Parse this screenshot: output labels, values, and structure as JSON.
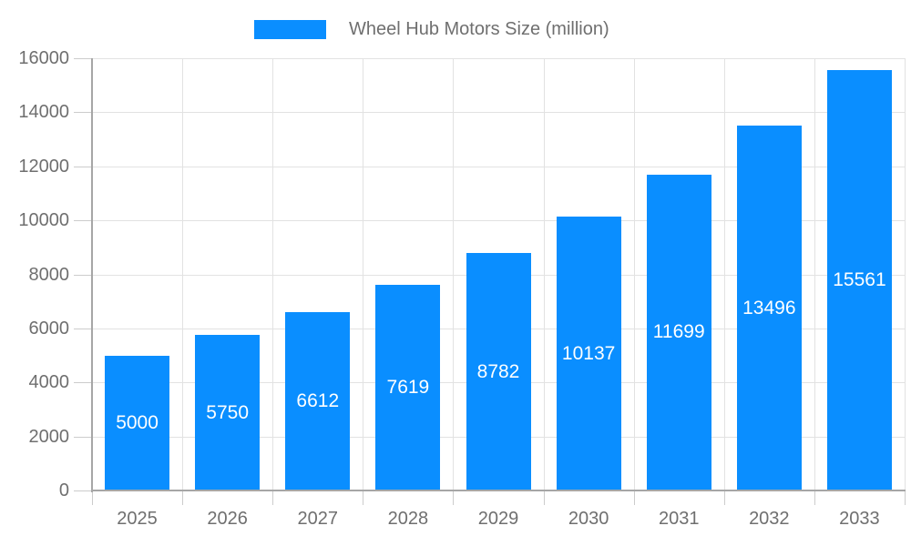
{
  "chart_data": {
    "type": "bar",
    "title": "",
    "legend": {
      "label": "Wheel Hub Motors Size (million)",
      "position": "top-center"
    },
    "categories": [
      "2025",
      "2026",
      "2027",
      "2028",
      "2029",
      "2030",
      "2031",
      "2032",
      "2033"
    ],
    "series": [
      {
        "name": "Wheel Hub Motors Size (million)",
        "values": [
          5000,
          5750,
          6612,
          7619,
          8782,
          10137,
          11699,
          13496,
          15561
        ]
      }
    ],
    "xlabel": "",
    "ylabel": "",
    "ylim": [
      0,
      16000
    ],
    "ytick_step": 2000,
    "ytick_labels": [
      "0",
      "2000",
      "4000",
      "6000",
      "8000",
      "10000",
      "12000",
      "14000",
      "16000"
    ],
    "grid": "horizontal and vertical gridlines on",
    "bar_value_labels": "white, centered inside bars"
  },
  "colors": {
    "bar": "#0a8eff",
    "axis_line": "#a6a6a6",
    "gridline": "#e2e2e2",
    "tick": "#cccccc",
    "axis_text": "#6f6f6f",
    "bar_label_text": "#ffffff",
    "background": "#ffffff"
  }
}
